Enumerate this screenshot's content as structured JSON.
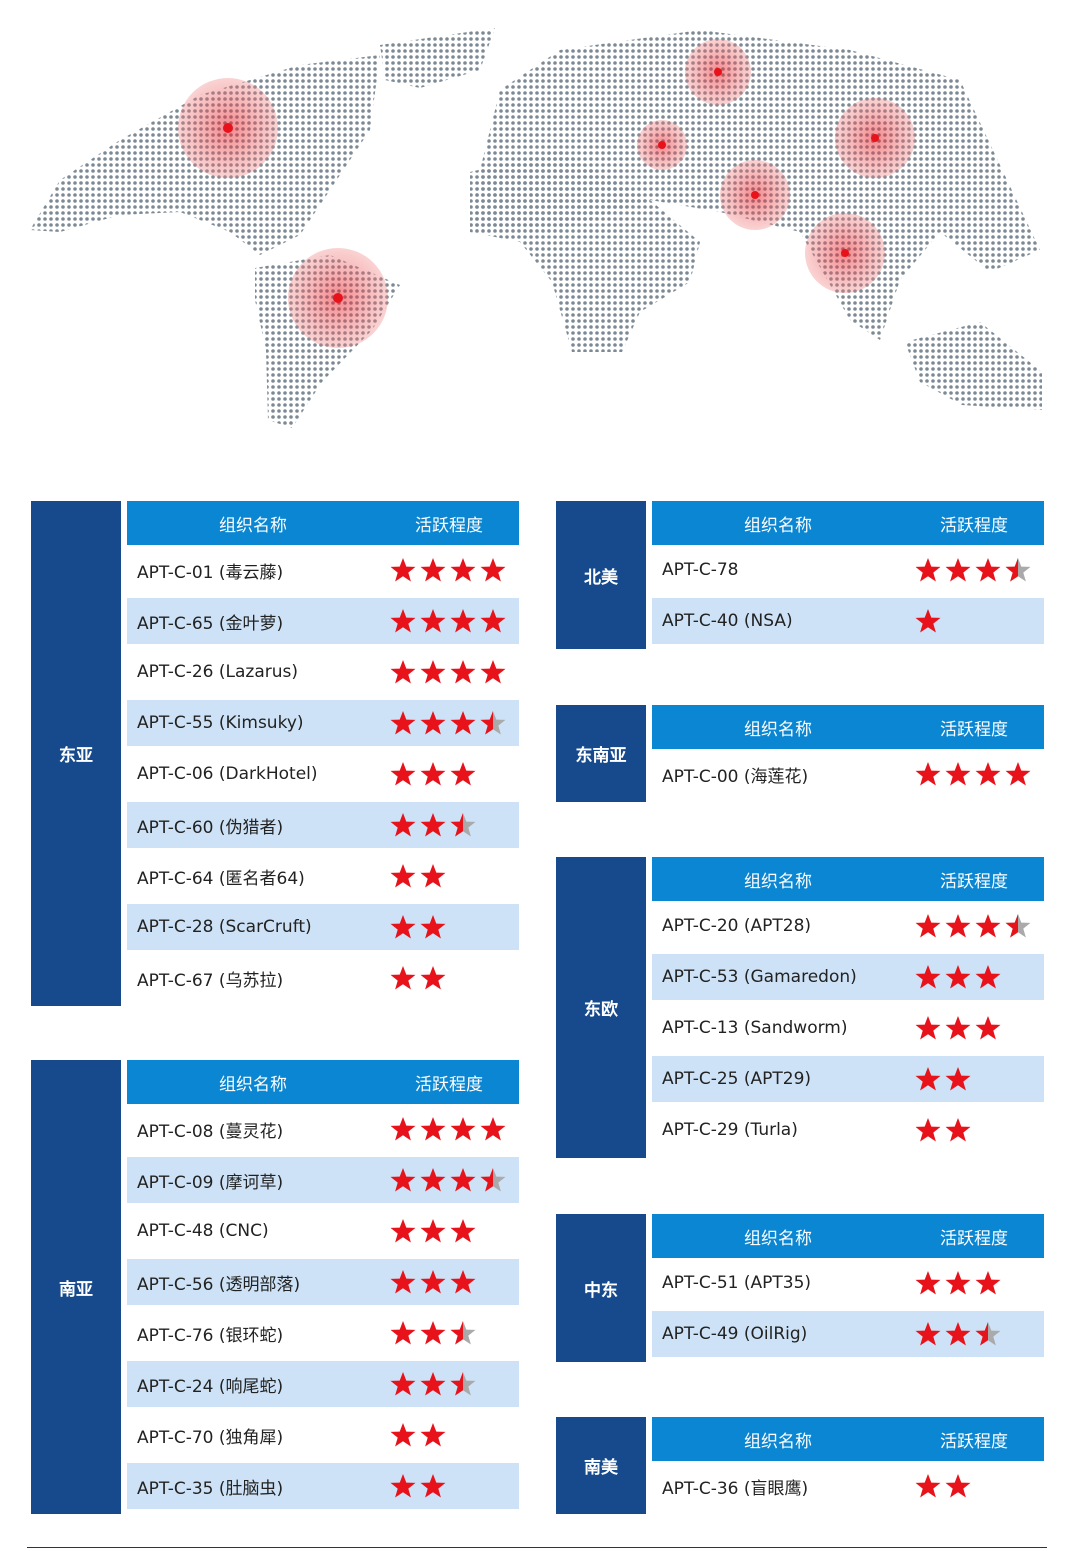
{
  "headers": {
    "name": "组织名称",
    "activity": "活跃程度"
  },
  "colors": {
    "region": "#164a8c",
    "header": "#0a86d2",
    "alt_row": "#cde2f6",
    "star": "#e8121b",
    "star_empty": "#aaaaaa",
    "map_dot": "#7d8a95",
    "hotspot": "#f08080"
  },
  "sections": [
    {
      "region": "东亚",
      "rows": [
        {
          "name": "APT-C-01 (毒云藤)",
          "rating": 4
        },
        {
          "name": "APT-C-65 (金叶萝)",
          "rating": 4
        },
        {
          "name": "APT-C-26 (Lazarus)",
          "rating": 4
        },
        {
          "name": "APT-C-55 (Kimsuky)",
          "rating": 3.5
        },
        {
          "name": "APT-C-06 (DarkHotel)",
          "rating": 3
        },
        {
          "name": "APT-C-60 (伪猎者)",
          "rating": 2.5
        },
        {
          "name": "APT-C-64 (匿名者64)",
          "rating": 2
        },
        {
          "name": "APT-C-28 (ScarCruft)",
          "rating": 2
        },
        {
          "name": "APT-C-67 (乌苏拉)",
          "rating": 2
        }
      ]
    },
    {
      "region": "南亚",
      "rows": [
        {
          "name": "APT-C-08 (蔓灵花)",
          "rating": 4
        },
        {
          "name": "APT-C-09 (摩诃草)",
          "rating": 3.5
        },
        {
          "name": "APT-C-48 (CNC)",
          "rating": 3
        },
        {
          "name": "APT-C-56 (透明部落)",
          "rating": 3
        },
        {
          "name": "APT-C-76 (银环蛇)",
          "rating": 2.5
        },
        {
          "name": "APT-C-24 (响尾蛇)",
          "rating": 2.5
        },
        {
          "name": "APT-C-70 (独角犀)",
          "rating": 2
        },
        {
          "name": "APT-C-35 (肚脑虫)",
          "rating": 2
        }
      ]
    },
    {
      "region": "北美",
      "rows": [
        {
          "name": "APT-C-78",
          "rating": 3.5
        },
        {
          "name": "APT-C-40 (NSA)",
          "rating": 1
        }
      ]
    },
    {
      "region": "东南亚",
      "rows": [
        {
          "name": "APT-C-00 (海莲花)",
          "rating": 4
        }
      ]
    },
    {
      "region": "东欧",
      "rows": [
        {
          "name": "APT-C-20 (APT28)",
          "rating": 3.5
        },
        {
          "name": "APT-C-53 (Gamaredon)",
          "rating": 3
        },
        {
          "name": "APT-C-13 (Sandworm)",
          "rating": 3
        },
        {
          "name": "APT-C-25 (APT29)",
          "rating": 2
        },
        {
          "name": "APT-C-29 (Turla)",
          "rating": 2
        }
      ]
    },
    {
      "region": "中东",
      "rows": [
        {
          "name": "APT-C-51 (APT35)",
          "rating": 3
        },
        {
          "name": "APT-C-49 (OilRig)",
          "rating": 2.5
        }
      ]
    },
    {
      "region": "南美",
      "rows": [
        {
          "name": "APT-C-36 (盲眼鹰)",
          "rating": 2
        }
      ]
    }
  ]
}
